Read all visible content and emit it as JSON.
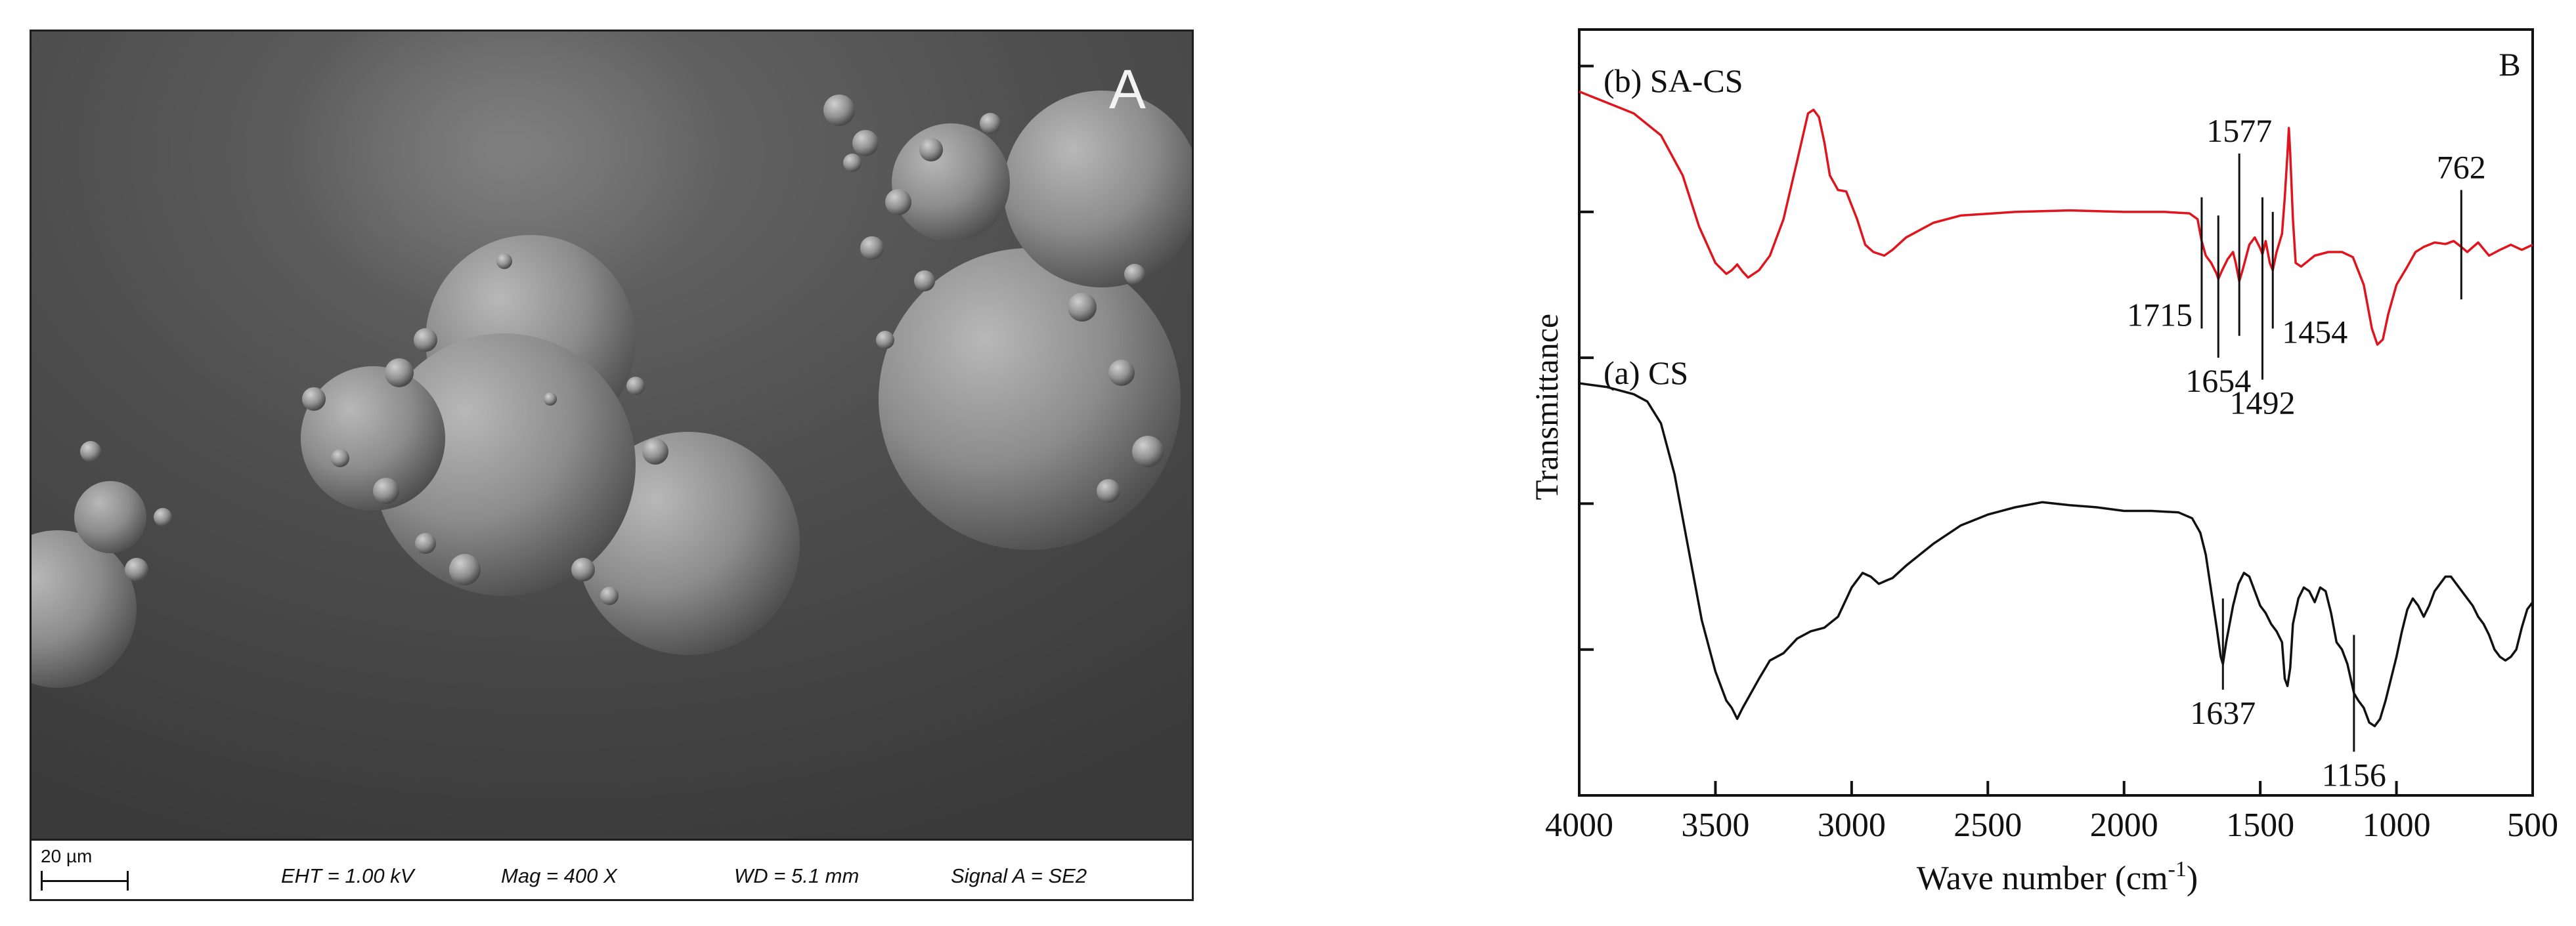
{
  "sem": {
    "panel_letter": "A",
    "scale_bar": "20 µm",
    "eht": "EHT =  1.00 kV",
    "mag": "Mag =    400 X",
    "wd": "WD =  5.1 mm",
    "signal": "Signal A = SE2"
  },
  "chart_data": {
    "type": "line",
    "panel_letter": "B",
    "xlabel": "Wave number (cm",
    "xlabel_sup": "-1",
    "xlabel_end": ")",
    "ylabel": "Transmittance",
    "xlim": [
      4000,
      500
    ],
    "x_reversed": true,
    "x_ticks": [
      4000,
      3500,
      3000,
      2500,
      2000,
      1500,
      1000,
      500
    ],
    "y_ticks": [
      0.2,
      0.4,
      0.6,
      0.8,
      1.0
    ],
    "ylim": [
      0,
      1.05
    ],
    "grid": false,
    "series": [
      {
        "name": "(b) SA-CS",
        "color": "#e0141c",
        "points": [
          [
            4000,
            0.965
          ],
          [
            3900,
            0.95
          ],
          [
            3800,
            0.935
          ],
          [
            3700,
            0.905
          ],
          [
            3620,
            0.85
          ],
          [
            3560,
            0.78
          ],
          [
            3500,
            0.73
          ],
          [
            3460,
            0.715
          ],
          [
            3440,
            0.72
          ],
          [
            3420,
            0.728
          ],
          [
            3400,
            0.718
          ],
          [
            3380,
            0.71
          ],
          [
            3340,
            0.72
          ],
          [
            3300,
            0.74
          ],
          [
            3250,
            0.79
          ],
          [
            3200,
            0.87
          ],
          [
            3160,
            0.935
          ],
          [
            3140,
            0.94
          ],
          [
            3120,
            0.93
          ],
          [
            3100,
            0.895
          ],
          [
            3080,
            0.85
          ],
          [
            3050,
            0.83
          ],
          [
            3020,
            0.828
          ],
          [
            2980,
            0.79
          ],
          [
            2950,
            0.755
          ],
          [
            2920,
            0.745
          ],
          [
            2880,
            0.74
          ],
          [
            2850,
            0.748
          ],
          [
            2800,
            0.765
          ],
          [
            2700,
            0.785
          ],
          [
            2600,
            0.795
          ],
          [
            2400,
            0.8
          ],
          [
            2200,
            0.802
          ],
          [
            2000,
            0.8
          ],
          [
            1850,
            0.8
          ],
          [
            1760,
            0.798
          ],
          [
            1730,
            0.79
          ],
          [
            1715,
            0.76
          ],
          [
            1700,
            0.74
          ],
          [
            1680,
            0.73
          ],
          [
            1660,
            0.715
          ],
          [
            1654,
            0.708
          ],
          [
            1640,
            0.72
          ],
          [
            1620,
            0.735
          ],
          [
            1600,
            0.745
          ],
          [
            1590,
            0.73
          ],
          [
            1577,
            0.705
          ],
          [
            1565,
            0.72
          ],
          [
            1540,
            0.755
          ],
          [
            1520,
            0.765
          ],
          [
            1500,
            0.75
          ],
          [
            1492,
            0.742
          ],
          [
            1480,
            0.76
          ],
          [
            1465,
            0.73
          ],
          [
            1454,
            0.72
          ],
          [
            1440,
            0.745
          ],
          [
            1420,
            0.77
          ],
          [
            1410,
            0.82
          ],
          [
            1400,
            0.88
          ],
          [
            1395,
            0.915
          ],
          [
            1390,
            0.88
          ],
          [
            1380,
            0.79
          ],
          [
            1370,
            0.73
          ],
          [
            1350,
            0.725
          ],
          [
            1300,
            0.74
          ],
          [
            1250,
            0.745
          ],
          [
            1200,
            0.745
          ],
          [
            1160,
            0.738
          ],
          [
            1120,
            0.7
          ],
          [
            1090,
            0.64
          ],
          [
            1070,
            0.618
          ],
          [
            1050,
            0.625
          ],
          [
            1030,
            0.66
          ],
          [
            1000,
            0.7
          ],
          [
            960,
            0.725
          ],
          [
            930,
            0.745
          ],
          [
            900,
            0.752
          ],
          [
            860,
            0.758
          ],
          [
            820,
            0.756
          ],
          [
            790,
            0.76
          ],
          [
            762,
            0.752
          ],
          [
            740,
            0.745
          ],
          [
            700,
            0.758
          ],
          [
            660,
            0.74
          ],
          [
            620,
            0.748
          ],
          [
            580,
            0.755
          ],
          [
            540,
            0.748
          ],
          [
            500,
            0.755
          ]
        ]
      },
      {
        "name": "(a) CS",
        "color": "#111111",
        "points": [
          [
            4000,
            0.565
          ],
          [
            3900,
            0.56
          ],
          [
            3800,
            0.55
          ],
          [
            3750,
            0.54
          ],
          [
            3700,
            0.51
          ],
          [
            3650,
            0.44
          ],
          [
            3600,
            0.34
          ],
          [
            3550,
            0.24
          ],
          [
            3500,
            0.17
          ],
          [
            3460,
            0.13
          ],
          [
            3440,
            0.12
          ],
          [
            3420,
            0.105
          ],
          [
            3400,
            0.12
          ],
          [
            3370,
            0.14
          ],
          [
            3340,
            0.16
          ],
          [
            3300,
            0.185
          ],
          [
            3250,
            0.195
          ],
          [
            3200,
            0.215
          ],
          [
            3150,
            0.225
          ],
          [
            3100,
            0.23
          ],
          [
            3050,
            0.245
          ],
          [
            3000,
            0.285
          ],
          [
            2960,
            0.305
          ],
          [
            2930,
            0.3
          ],
          [
            2900,
            0.29
          ],
          [
            2870,
            0.295
          ],
          [
            2850,
            0.298
          ],
          [
            2800,
            0.315
          ],
          [
            2700,
            0.345
          ],
          [
            2600,
            0.37
          ],
          [
            2500,
            0.385
          ],
          [
            2400,
            0.395
          ],
          [
            2300,
            0.402
          ],
          [
            2200,
            0.398
          ],
          [
            2100,
            0.395
          ],
          [
            2000,
            0.39
          ],
          [
            1900,
            0.39
          ],
          [
            1800,
            0.388
          ],
          [
            1750,
            0.38
          ],
          [
            1720,
            0.36
          ],
          [
            1700,
            0.33
          ],
          [
            1680,
            0.28
          ],
          [
            1660,
            0.23
          ],
          [
            1645,
            0.19
          ],
          [
            1637,
            0.18
          ],
          [
            1625,
            0.21
          ],
          [
            1600,
            0.26
          ],
          [
            1580,
            0.29
          ],
          [
            1560,
            0.305
          ],
          [
            1540,
            0.3
          ],
          [
            1520,
            0.28
          ],
          [
            1500,
            0.26
          ],
          [
            1480,
            0.25
          ],
          [
            1460,
            0.235
          ],
          [
            1440,
            0.225
          ],
          [
            1420,
            0.21
          ],
          [
            1410,
            0.16
          ],
          [
            1400,
            0.15
          ],
          [
            1390,
            0.175
          ],
          [
            1380,
            0.235
          ],
          [
            1360,
            0.27
          ],
          [
            1340,
            0.285
          ],
          [
            1320,
            0.28
          ],
          [
            1300,
            0.265
          ],
          [
            1280,
            0.285
          ],
          [
            1260,
            0.28
          ],
          [
            1240,
            0.25
          ],
          [
            1220,
            0.21
          ],
          [
            1200,
            0.2
          ],
          [
            1180,
            0.18
          ],
          [
            1156,
            0.14
          ],
          [
            1140,
            0.13
          ],
          [
            1120,
            0.12
          ],
          [
            1100,
            0.1
          ],
          [
            1080,
            0.095
          ],
          [
            1060,
            0.105
          ],
          [
            1040,
            0.13
          ],
          [
            1020,
            0.16
          ],
          [
            1000,
            0.19
          ],
          [
            980,
            0.225
          ],
          [
            960,
            0.255
          ],
          [
            940,
            0.27
          ],
          [
            920,
            0.26
          ],
          [
            900,
            0.245
          ],
          [
            880,
            0.26
          ],
          [
            860,
            0.28
          ],
          [
            840,
            0.29
          ],
          [
            820,
            0.3
          ],
          [
            800,
            0.3
          ],
          [
            780,
            0.29
          ],
          [
            760,
            0.28
          ],
          [
            740,
            0.27
          ],
          [
            720,
            0.26
          ],
          [
            700,
            0.245
          ],
          [
            680,
            0.235
          ],
          [
            660,
            0.22
          ],
          [
            640,
            0.2
          ],
          [
            620,
            0.19
          ],
          [
            600,
            0.185
          ],
          [
            580,
            0.19
          ],
          [
            560,
            0.2
          ],
          [
            540,
            0.23
          ],
          [
            520,
            0.255
          ],
          [
            500,
            0.265
          ]
        ]
      }
    ],
    "annotations_b": [
      {
        "label": "1715",
        "x": 1715,
        "y_top": 0.82,
        "y_bot": 0.64,
        "label_pos": "below-left"
      },
      {
        "label": "1654",
        "x": 1654,
        "y_top": 0.795,
        "y_bot": 0.6,
        "label_pos": "below"
      },
      {
        "label": "1577",
        "x": 1577,
        "y_top": 0.88,
        "y_bot": 0.63,
        "label_pos": "above"
      },
      {
        "label": "1492",
        "x": 1492,
        "y_top": 0.82,
        "y_bot": 0.57,
        "label_pos": "below"
      },
      {
        "label": "1454",
        "x": 1454,
        "y_top": 0.8,
        "y_bot": 0.64,
        "label_pos": "below-right"
      },
      {
        "label": "762",
        "x": 762,
        "y_top": 0.83,
        "y_bot": 0.68,
        "label_pos": "above"
      }
    ],
    "annotations_a": [
      {
        "label": "1637",
        "x": 1637,
        "y_top": 0.27,
        "y_bot": 0.145,
        "label_pos": "below"
      },
      {
        "label": "1156",
        "x": 1156,
        "y_top": 0.22,
        "y_bot": 0.06,
        "label_pos": "below"
      }
    ]
  }
}
